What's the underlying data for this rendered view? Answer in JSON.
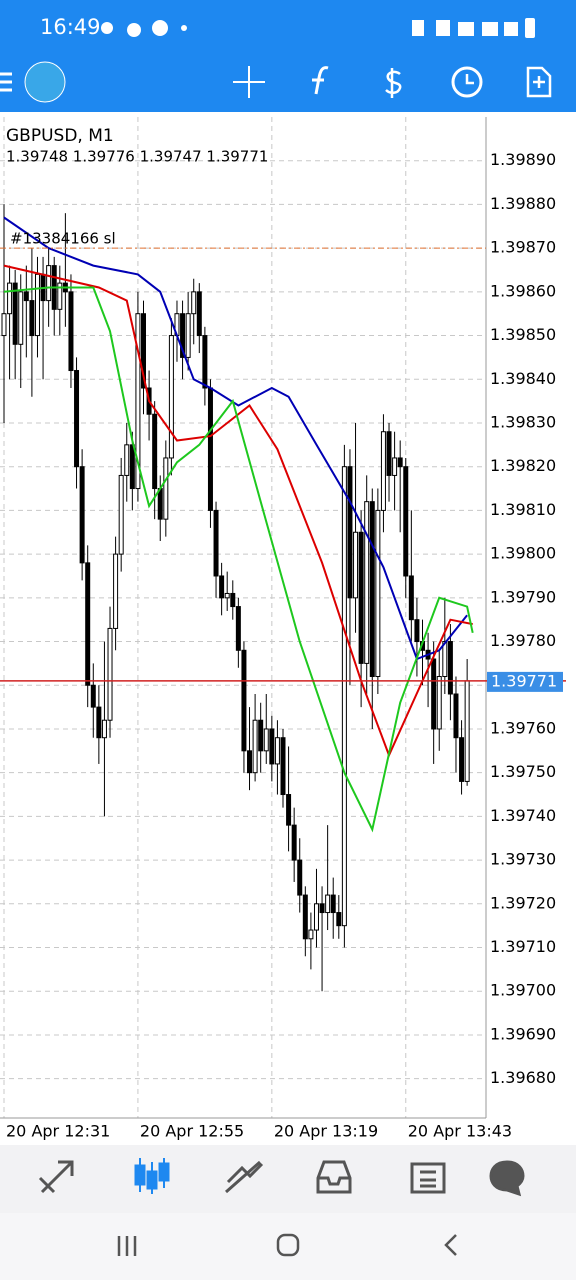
{
  "status_bar": {
    "time": "16:49"
  },
  "chart_data": {
    "type": "candlestick",
    "symbol": "GBPUSD, M1",
    "ohlc_text": "1.39748 1.39776 1.39747 1.39771",
    "sl_label": "#13384166 sl",
    "sl_level": 1.3987,
    "price": 1.39771,
    "ylim": [
      1.39671,
      1.399
    ],
    "yticks": [
      {
        "value": 1.3989,
        "label": "1.39890"
      },
      {
        "value": 1.3988,
        "label": "1.39880"
      },
      {
        "value": 1.3987,
        "label": "1.39870"
      },
      {
        "value": 1.3986,
        "label": "1.39860"
      },
      {
        "value": 1.3985,
        "label": "1.39850"
      },
      {
        "value": 1.3984,
        "label": "1.39840"
      },
      {
        "value": 1.3983,
        "label": "1.39830"
      },
      {
        "value": 1.3982,
        "label": "1.39820"
      },
      {
        "value": 1.3981,
        "label": "1.39810"
      },
      {
        "value": 1.398,
        "label": "1.39800"
      },
      {
        "value": 1.3979,
        "label": "1.39790"
      },
      {
        "value": 1.3978,
        "label": "1.39780"
      },
      {
        "value": 1.3977,
        "label": "1.39770"
      },
      {
        "value": 1.3976,
        "label": "1.39760"
      },
      {
        "value": 1.3975,
        "label": "1.39750"
      },
      {
        "value": 1.3974,
        "label": "1.39740"
      },
      {
        "value": 1.3973,
        "label": "1.39730"
      },
      {
        "value": 1.3972,
        "label": "1.39720"
      },
      {
        "value": 1.3971,
        "label": "1.39710"
      },
      {
        "value": 1.397,
        "label": "1.39700"
      },
      {
        "value": 1.3969,
        "label": "1.39690"
      },
      {
        "value": 1.3968,
        "label": "1.39680"
      }
    ],
    "categories": [
      "20 Apr 12:31",
      null,
      null,
      null,
      null,
      null,
      null,
      null,
      null,
      null,
      null,
      null,
      null,
      null,
      null,
      null,
      null,
      null,
      null,
      null,
      null,
      null,
      null,
      null,
      "20 Apr 12:55",
      null,
      null,
      null,
      null,
      null,
      null,
      null,
      null,
      null,
      null,
      null,
      null,
      null,
      null,
      null,
      null,
      null,
      null,
      null,
      null,
      null,
      null,
      null,
      "20 Apr 13:19",
      null,
      null,
      null,
      null,
      null,
      null,
      null,
      null,
      null,
      null,
      null,
      null,
      null,
      null,
      null,
      null,
      null,
      null,
      null,
      null,
      null,
      null,
      null,
      "20 Apr 13:43",
      null,
      null,
      null,
      null,
      null,
      null,
      null,
      null,
      null,
      null,
      null
    ],
    "open": [
      1.3985,
      1.39855,
      1.39862,
      1.39848,
      1.3986,
      1.39858,
      1.3985,
      1.39864,
      1.39858,
      1.39866,
      1.39856,
      1.39862,
      1.3986,
      1.39842,
      1.3982,
      1.39798,
      1.3977,
      1.39765,
      1.39758,
      1.39762,
      1.39783,
      1.398,
      1.39818,
      1.39825,
      1.39815,
      1.39855,
      1.39838,
      1.39832,
      1.39815,
      1.39808,
      1.39822,
      1.3985,
      1.39855,
      1.39845,
      1.39855,
      1.3986,
      1.3985,
      1.39838,
      1.3981,
      1.39795,
      1.3979,
      1.39791,
      1.39788,
      1.39778,
      1.39755,
      1.3975,
      1.39762,
      1.39755,
      1.3976,
      1.39752,
      1.39758,
      1.39745,
      1.39738,
      1.3973,
      1.39722,
      1.39712,
      1.39714,
      1.3972,
      1.39718,
      1.39722,
      1.39718,
      1.39715,
      1.3982,
      1.3979,
      1.39805,
      1.39775,
      1.39812,
      1.39772,
      1.3981,
      1.39828,
      1.39818,
      1.39822,
      1.3982,
      1.39795,
      1.39785,
      1.3978,
      1.39778,
      1.39776,
      1.3976,
      1.39772,
      1.3978,
      1.39768,
      1.39758,
      1.39748
    ],
    "high": [
      1.3988,
      1.39866,
      1.39865,
      1.39864,
      1.39866,
      1.3987,
      1.39868,
      1.39868,
      1.3987,
      1.39868,
      1.39866,
      1.39878,
      1.39864,
      1.39845,
      1.39824,
      1.39802,
      1.39775,
      1.3977,
      1.3978,
      1.39788,
      1.39804,
      1.39822,
      1.3983,
      1.39828,
      1.3986,
      1.39858,
      1.39842,
      1.39835,
      1.39818,
      1.39826,
      1.39854,
      1.39858,
      1.39858,
      1.3986,
      1.39863,
      1.39862,
      1.39852,
      1.3984,
      1.39812,
      1.39798,
      1.39796,
      1.39794,
      1.3979,
      1.3978,
      1.39765,
      1.39768,
      1.39766,
      1.39768,
      1.39763,
      1.39762,
      1.3976,
      1.39756,
      1.39742,
      1.39735,
      1.39724,
      1.39718,
      1.39728,
      1.39724,
      1.39738,
      1.39726,
      1.39722,
      1.39825,
      1.39824,
      1.3983,
      1.3981,
      1.39818,
      1.39815,
      1.39815,
      1.39832,
      1.3983,
      1.39828,
      1.39826,
      1.39822,
      1.3981,
      1.3979,
      1.39785,
      1.39782,
      1.3978,
      1.39778,
      1.3979,
      1.39784,
      1.39772,
      1.39762,
      1.39776
    ],
    "low": [
      1.3983,
      1.3984,
      1.3984,
      1.39838,
      1.39845,
      1.39836,
      1.39845,
      1.3984,
      1.39852,
      1.3985,
      1.3985,
      1.39852,
      1.39838,
      1.39815,
      1.39794,
      1.39765,
      1.39758,
      1.39752,
      1.3974,
      1.39758,
      1.39778,
      1.39796,
      1.39812,
      1.3981,
      1.39812,
      1.39832,
      1.39826,
      1.39808,
      1.39803,
      1.39804,
      1.39818,
      1.39844,
      1.3984,
      1.39842,
      1.39848,
      1.39846,
      1.39834,
      1.39806,
      1.3979,
      1.39786,
      1.39787,
      1.39785,
      1.39774,
      1.3975,
      1.39746,
      1.39748,
      1.3975,
      1.39752,
      1.39748,
      1.39745,
      1.39742,
      1.39732,
      1.39725,
      1.39718,
      1.39708,
      1.39705,
      1.3971,
      1.397,
      1.39714,
      1.39712,
      1.39712,
      1.3971,
      1.3977,
      1.39782,
      1.39765,
      1.39768,
      1.3976,
      1.39768,
      1.39805,
      1.39812,
      1.3981,
      1.39805,
      1.3979,
      1.3978,
      1.39772,
      1.3977,
      1.39765,
      1.39752,
      1.39755,
      1.39768,
      1.39762,
      1.3975,
      1.39745,
      1.39747
    ],
    "close": [
      1.39855,
      1.39862,
      1.39848,
      1.3986,
      1.39858,
      1.3985,
      1.39864,
      1.39858,
      1.39866,
      1.39856,
      1.39862,
      1.3986,
      1.39842,
      1.3982,
      1.39798,
      1.3977,
      1.39765,
      1.39758,
      1.39762,
      1.39783,
      1.398,
      1.39818,
      1.39825,
      1.39815,
      1.39855,
      1.39838,
      1.39832,
      1.39815,
      1.39808,
      1.39822,
      1.3985,
      1.39855,
      1.39845,
      1.39855,
      1.3986,
      1.3985,
      1.39838,
      1.3981,
      1.39795,
      1.3979,
      1.39791,
      1.39788,
      1.39778,
      1.39755,
      1.3975,
      1.39762,
      1.39755,
      1.3976,
      1.39752,
      1.39758,
      1.39745,
      1.39738,
      1.3973,
      1.39722,
      1.39712,
      1.39714,
      1.3972,
      1.39718,
      1.39722,
      1.39718,
      1.39715,
      1.3982,
      1.3979,
      1.39805,
      1.39775,
      1.39812,
      1.39772,
      1.3981,
      1.39828,
      1.39818,
      1.39822,
      1.3982,
      1.39795,
      1.39785,
      1.3978,
      1.39778,
      1.39776,
      1.3976,
      1.39772,
      1.3978,
      1.39768,
      1.39758,
      1.39748,
      1.39771
    ],
    "overlays": [
      {
        "color": "#0000b4",
        "x": [
          0,
          8,
          16,
          24,
          28,
          31,
          34,
          37,
          42,
          48,
          51,
          56,
          62,
          68,
          74,
          78,
          83
        ],
        "values": [
          1.39877,
          1.3987,
          1.39866,
          1.39864,
          1.3986,
          1.3985,
          1.3984,
          1.39838,
          1.39834,
          1.39838,
          1.39836,
          1.39825,
          1.39812,
          1.39797,
          1.39776,
          1.39778,
          1.39786
        ]
      },
      {
        "color": "#dc0000",
        "x": [
          0,
          17,
          22,
          26,
          31,
          37,
          44,
          49,
          57,
          64,
          69,
          75,
          80,
          84
        ],
        "values": [
          1.39866,
          1.39861,
          1.39858,
          1.39835,
          1.39826,
          1.39827,
          1.39834,
          1.39824,
          1.39798,
          1.39771,
          1.39754,
          1.39771,
          1.39785,
          1.39784
        ]
      },
      {
        "color": "#1ec81e",
        "x": [
          0,
          8,
          16,
          19,
          23,
          26,
          31,
          35,
          41,
          46,
          53,
          61,
          66,
          71,
          78,
          83,
          84
        ],
        "values": [
          1.3986,
          1.39861,
          1.39861,
          1.39851,
          1.39826,
          1.39811,
          1.39821,
          1.39825,
          1.39835,
          1.39812,
          1.3978,
          1.3975,
          1.39737,
          1.39766,
          1.3979,
          1.39788,
          1.39782
        ]
      }
    ]
  }
}
